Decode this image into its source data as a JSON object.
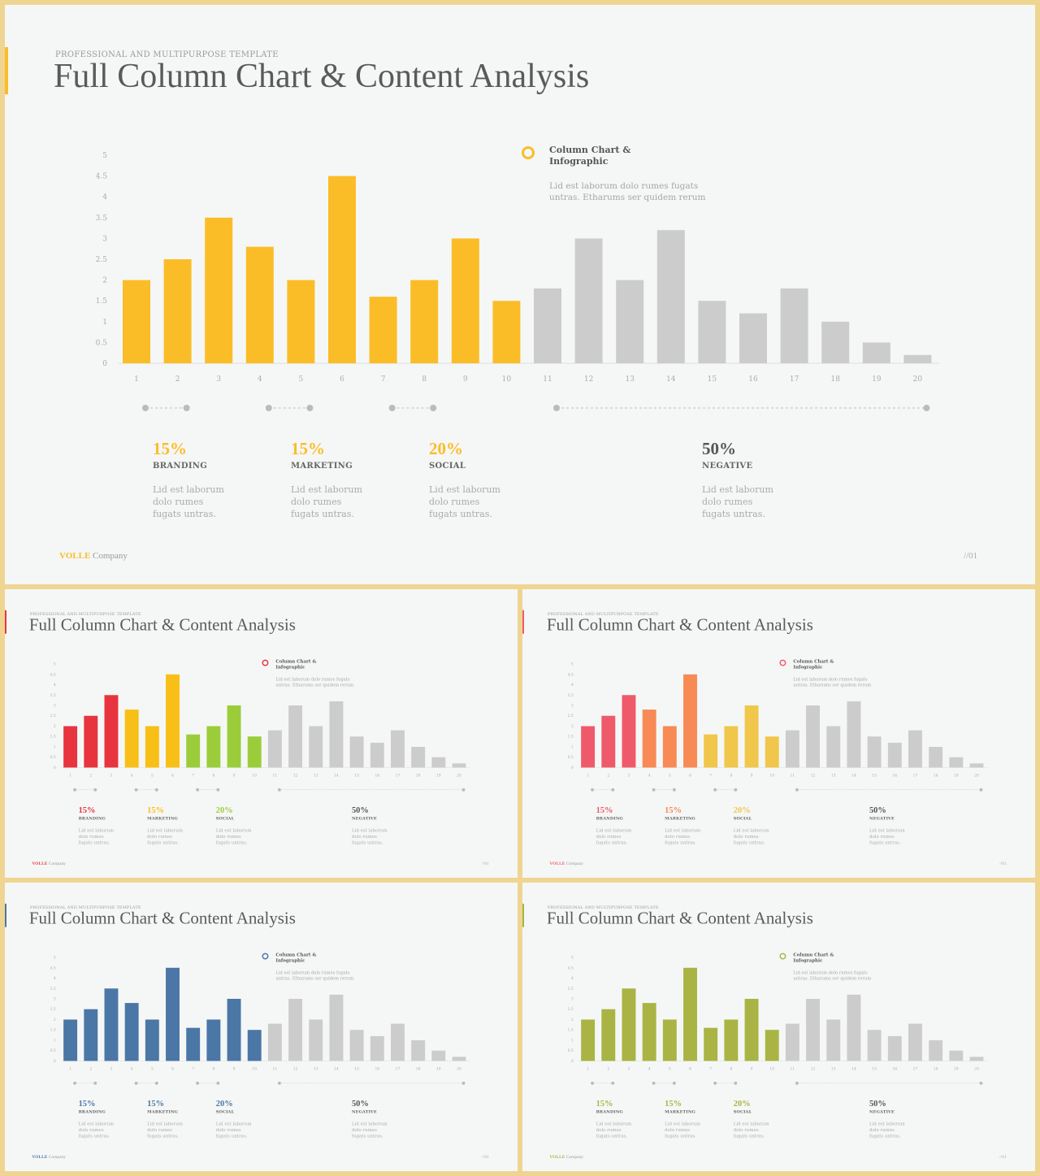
{
  "slide": {
    "overline": "PROFESSIONAL AND MULTIPURPOSE  TEMPLATE",
    "title": "Full Column Chart & Content Analysis",
    "legend_title": "Column Chart & Infographic",
    "legend_desc": "Lid est laborum dolo rumes fugats untras. Etharums ser quidem rerum",
    "brand": "VOLLE",
    "brand_suffix": "Company",
    "page": "//01",
    "stats": [
      {
        "pct": "15%",
        "label": "BRANDING",
        "desc": "Lid est laborum dolo rumes fugats untras."
      },
      {
        "pct": "15%",
        "label": "MARKETING",
        "desc": "Lid est laborum dolo rumes fugats untras."
      },
      {
        "pct": "20%",
        "label": "SOCIAL",
        "desc": "Lid est laborum dolo rumes fugats untras."
      },
      {
        "pct": "50%",
        "label": "NEGATIVE",
        "desc": "Lid est laborum dolo rumes fugats untras."
      }
    ]
  },
  "chart_data": {
    "type": "bar",
    "categories": [
      "1",
      "2",
      "3",
      "4",
      "5",
      "6",
      "7",
      "8",
      "9",
      "10",
      "11",
      "12",
      "13",
      "14",
      "15",
      "16",
      "17",
      "18",
      "19",
      "20"
    ],
    "values": [
      2,
      2.5,
      3.5,
      2.8,
      2,
      4.5,
      1.6,
      2,
      3,
      1.5,
      1.8,
      3,
      2,
      3.2,
      1.5,
      1.2,
      1.8,
      1,
      0.5,
      0.2
    ],
    "ylim": [
      0,
      5
    ],
    "yticks": [
      "0",
      "0.5",
      "1",
      "1.5",
      "2",
      "2.5",
      "3",
      "3.5",
      "4",
      "4.5",
      "5"
    ],
    "grid": false
  },
  "themes": [
    {
      "id": "yellow",
      "accent": "#fbbd27",
      "pct_colors": [
        "#fbbd27",
        "#fbbd27",
        "#fbbd27",
        "#555555"
      ],
      "bar_colors": [
        "#fbbd27",
        "#fbbd27",
        "#fbbd27",
        "#fbbd27",
        "#fbbd27",
        "#fbbd27",
        "#fbbd27",
        "#fbbd27",
        "#fbbd27",
        "#fbbd27",
        "#cccccc",
        "#cccccc",
        "#cccccc",
        "#cccccc",
        "#cccccc",
        "#cccccc",
        "#cccccc",
        "#cccccc",
        "#cccccc",
        "#cccccc"
      ]
    },
    {
      "id": "red",
      "accent": "#e8343f",
      "pct_colors": [
        "#e8343f",
        "#f8bf17",
        "#9bcd3a",
        "#555555"
      ],
      "bar_colors": [
        "#e8343f",
        "#e8343f",
        "#e8343f",
        "#f8bf17",
        "#f8bf17",
        "#f8bf17",
        "#9bcd3a",
        "#9bcd3a",
        "#9bcd3a",
        "#9bcd3a",
        "#cccccc",
        "#cccccc",
        "#cccccc",
        "#cccccc",
        "#cccccc",
        "#cccccc",
        "#cccccc",
        "#cccccc",
        "#cccccc",
        "#cccccc"
      ]
    },
    {
      "id": "pink",
      "accent": "#ef5a6a",
      "pct_colors": [
        "#ef5a6a",
        "#f78a55",
        "#f0c64b",
        "#555555"
      ],
      "bar_colors": [
        "#ef5a6a",
        "#ef5a6a",
        "#ef5a6a",
        "#f78a55",
        "#f78a55",
        "#f78a55",
        "#f0c64b",
        "#f0c64b",
        "#f0c64b",
        "#f0c64b",
        "#cccccc",
        "#cccccc",
        "#cccccc",
        "#cccccc",
        "#cccccc",
        "#cccccc",
        "#cccccc",
        "#cccccc",
        "#cccccc",
        "#cccccc"
      ]
    },
    {
      "id": "blue",
      "accent": "#4a77a6",
      "pct_colors": [
        "#4a77a6",
        "#4a77a6",
        "#4a77a6",
        "#555555"
      ],
      "bar_colors": [
        "#4a77a6",
        "#4a77a6",
        "#4a77a6",
        "#4a77a6",
        "#4a77a6",
        "#4a77a6",
        "#4a77a6",
        "#4a77a6",
        "#4a77a6",
        "#4a77a6",
        "#cccccc",
        "#cccccc",
        "#cccccc",
        "#cccccc",
        "#cccccc",
        "#cccccc",
        "#cccccc",
        "#cccccc",
        "#cccccc",
        "#cccccc"
      ]
    },
    {
      "id": "olive",
      "accent": "#a9b444",
      "pct_colors": [
        "#a9b444",
        "#a9b444",
        "#a9b444",
        "#555555"
      ],
      "bar_colors": [
        "#a9b444",
        "#a9b444",
        "#a9b444",
        "#a9b444",
        "#a9b444",
        "#a9b444",
        "#a9b444",
        "#a9b444",
        "#a9b444",
        "#a9b444",
        "#cccccc",
        "#cccccc",
        "#cccccc",
        "#cccccc",
        "#cccccc",
        "#cccccc",
        "#cccccc",
        "#cccccc",
        "#cccccc",
        "#cccccc"
      ]
    }
  ]
}
